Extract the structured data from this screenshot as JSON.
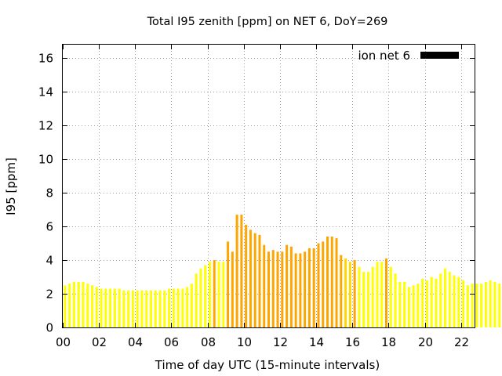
{
  "chart_data": {
    "type": "bar",
    "title": "Total I95 zenith [ppm] on NET 6, DoY=269",
    "xlabel": "Time of day UTC (15-minute intervals)",
    "ylabel": "I95 [ppm]",
    "legend": {
      "label": "ion net 6",
      "placement": "top-right",
      "color": "#000000"
    },
    "xlim": [
      0,
      22.75
    ],
    "ylim": [
      0,
      16.8
    ],
    "x_ticks": [
      0,
      2,
      4,
      6,
      8,
      10,
      12,
      14,
      16,
      18,
      20,
      22
    ],
    "x_tick_labels": [
      "00",
      "02",
      "04",
      "06",
      "08",
      "10",
      "12",
      "14",
      "16",
      "18",
      "20",
      "22"
    ],
    "y_ticks": [
      0,
      2,
      4,
      6,
      8,
      10,
      12,
      14,
      16
    ],
    "y_tick_labels": [
      "0",
      "2",
      "4",
      "6",
      "8",
      "10",
      "12",
      "14",
      "16"
    ],
    "grid": true,
    "bar_interval_hours": 0.25,
    "colors": {
      "low": "#ffff00",
      "mid": "#ffd700",
      "high": "#ffa500"
    },
    "values": [
      2.5,
      2.6,
      2.7,
      2.7,
      2.7,
      2.6,
      2.5,
      2.4,
      2.3,
      2.3,
      2.3,
      2.3,
      2.3,
      2.2,
      2.2,
      2.2,
      2.2,
      2.2,
      2.2,
      2.2,
      2.2,
      2.2,
      2.2,
      2.3,
      2.3,
      2.3,
      2.3,
      2.4,
      2.6,
      3.2,
      3.5,
      3.7,
      3.9,
      4.0,
      3.9,
      3.9,
      5.1,
      4.5,
      6.7,
      6.7,
      6.1,
      5.8,
      5.6,
      5.5,
      4.9,
      4.5,
      4.6,
      4.5,
      4.5,
      4.9,
      4.8,
      4.4,
      4.4,
      4.5,
      4.7,
      4.7,
      5.0,
      5.1,
      5.4,
      5.4,
      5.3,
      4.3,
      4.1,
      3.9,
      4.0,
      3.6,
      3.3,
      3.3,
      3.6,
      3.9,
      3.9,
      4.1,
      3.6,
      3.2,
      2.7,
      2.7,
      2.4,
      2.5,
      2.6,
      2.9,
      2.8,
      3.0,
      2.9,
      3.2,
      3.5,
      3.3,
      3.1,
      3.0,
      2.8,
      2.5,
      2.6,
      2.6,
      2.6,
      2.7,
      2.8,
      2.7,
      2.6,
      2.6
    ],
    "levels": [
      "low",
      "low",
      "low",
      "low",
      "low",
      "low",
      "low",
      "low",
      "low",
      "low",
      "low",
      "low",
      "low",
      "low",
      "low",
      "low",
      "low",
      "low",
      "low",
      "low",
      "low",
      "low",
      "low",
      "low",
      "low",
      "low",
      "low",
      "low",
      "low",
      "low",
      "low",
      "low",
      "low",
      "high",
      "low",
      "low",
      "high",
      "high",
      "high",
      "high",
      "high",
      "high",
      "high",
      "high",
      "high",
      "high",
      "high",
      "high",
      "high",
      "high",
      "high",
      "high",
      "high",
      "high",
      "high",
      "high",
      "high",
      "high",
      "high",
      "high",
      "high",
      "high",
      "mid",
      "mid",
      "high",
      "low",
      "low",
      "low",
      "low",
      "low",
      "low",
      "high",
      "low",
      "low",
      "low",
      "low",
      "low",
      "low",
      "low",
      "low",
      "low",
      "low",
      "low",
      "low",
      "low",
      "low",
      "low",
      "low",
      "low",
      "low",
      "low",
      "low",
      "low",
      "low",
      "low",
      "low",
      "low",
      "low"
    ]
  }
}
